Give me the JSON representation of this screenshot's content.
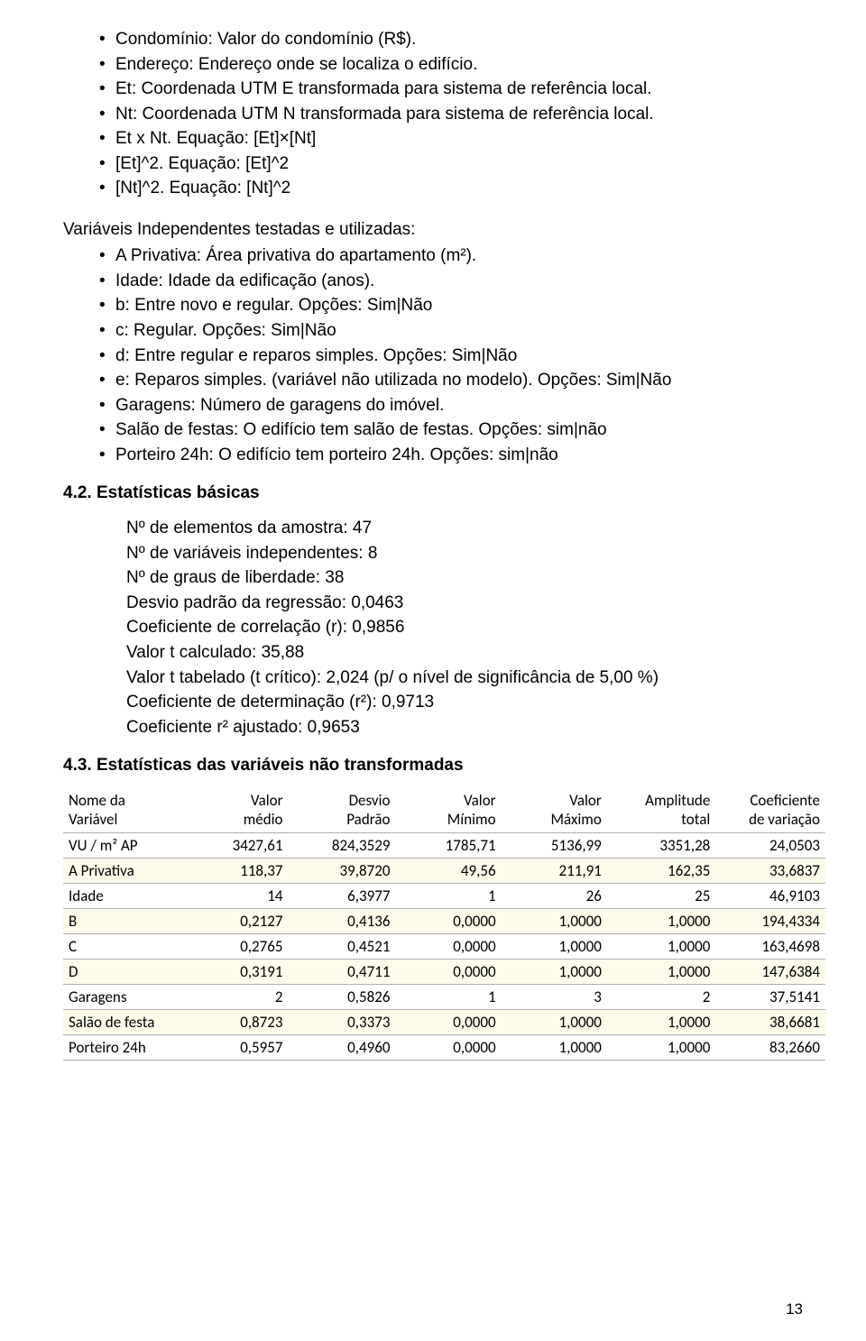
{
  "bullets_top": [
    "Condomínio: Valor do condomínio (R$).",
    "Endereço: Endereço onde se localiza o edifício.",
    "Et: Coordenada UTM E transformada para sistema de referência local.",
    "Nt: Coordenada UTM N transformada para sistema de referência local.",
    "Et x Nt. Equação: [Et]×[Nt]",
    "[Et]^2. Equação: [Et]^2",
    "[Nt]^2. Equação: [Nt]^2"
  ],
  "vars_label": "Variáveis Independentes testadas e utilizadas:",
  "bullets_vars": [
    "A Privativa: Área privativa do apartamento (m²).",
    "Idade: Idade da edificação (anos).",
    "b: Entre novo e regular. Opções: Sim|Não",
    "c: Regular. Opções: Sim|Não",
    "d: Entre regular e reparos simples. Opções: Sim|Não",
    "e: Reparos simples. (variável não utilizada no modelo). Opções: Sim|Não",
    "Garagens: Número de garagens do imóvel.",
    "Salão de festas: O edifício tem salão de festas. Opções: sim|não",
    "Porteiro 24h: O edifício tem porteiro 24h. Opções: sim|não"
  ],
  "section_42": "4.2. Estatísticas básicas",
  "stats_42": [
    "Nº de elementos da amostra: 47",
    "Nº de variáveis independentes: 8",
    "Nº de graus de liberdade: 38",
    "Desvio padrão da regressão: 0,0463",
    "Coeficiente de correlação (r): 0,9856",
    "Valor t calculado: 35,88",
    "Valor t tabelado (t crítico): 2,024 (p/ o nível de significância de 5,00 %)",
    "Coeficiente de determinação (r²): 0,9713",
    "Coeficiente r² ajustado: 0,9653"
  ],
  "section_43": "4.3. Estatísticas das variáveis não transformadas",
  "table": {
    "alt_row_color": "#fdfbea",
    "border_color": "#b0b0b0",
    "header_font_size": 17,
    "cell_font_size": 17,
    "columns": [
      {
        "line1": "Nome da",
        "line2": "Variável",
        "align": "left"
      },
      {
        "line1": "Valor",
        "line2": "médio",
        "align": "right"
      },
      {
        "line1": "Desvio",
        "line2": "Padrão",
        "align": "right"
      },
      {
        "line1": "Valor",
        "line2": "Mínimo",
        "align": "right"
      },
      {
        "line1": "Valor",
        "line2": "Máximo",
        "align": "right"
      },
      {
        "line1": "Amplitude",
        "line2": "total",
        "align": "right"
      },
      {
        "line1": "Coeficiente",
        "line2": "de variação",
        "align": "right"
      }
    ],
    "rows": [
      [
        "VU / m² AP",
        "3427,61",
        "824,3529",
        "1785,71",
        "5136,99",
        "3351,28",
        "24,0503"
      ],
      [
        "A Privativa",
        "118,37",
        "39,8720",
        "49,56",
        "211,91",
        "162,35",
        "33,6837"
      ],
      [
        "Idade",
        "14",
        "6,3977",
        "1",
        "26",
        "25",
        "46,9103"
      ],
      [
        "B",
        "0,2127",
        "0,4136",
        "0,0000",
        "1,0000",
        "1,0000",
        "194,4334"
      ],
      [
        "C",
        "0,2765",
        "0,4521",
        "0,0000",
        "1,0000",
        "1,0000",
        "163,4698"
      ],
      [
        "D",
        "0,3191",
        "0,4711",
        "0,0000",
        "1,0000",
        "1,0000",
        "147,6384"
      ],
      [
        "Garagens",
        "2",
        "0,5826",
        "1",
        "3",
        "2",
        "37,5141"
      ],
      [
        "Salão de festa",
        "0,8723",
        "0,3373",
        "0,0000",
        "1,0000",
        "1,0000",
        "38,6681"
      ],
      [
        "Porteiro 24h",
        "0,5957",
        "0,4960",
        "0,0000",
        "1,0000",
        "1,0000",
        "83,2660"
      ]
    ]
  },
  "page_number": "13"
}
